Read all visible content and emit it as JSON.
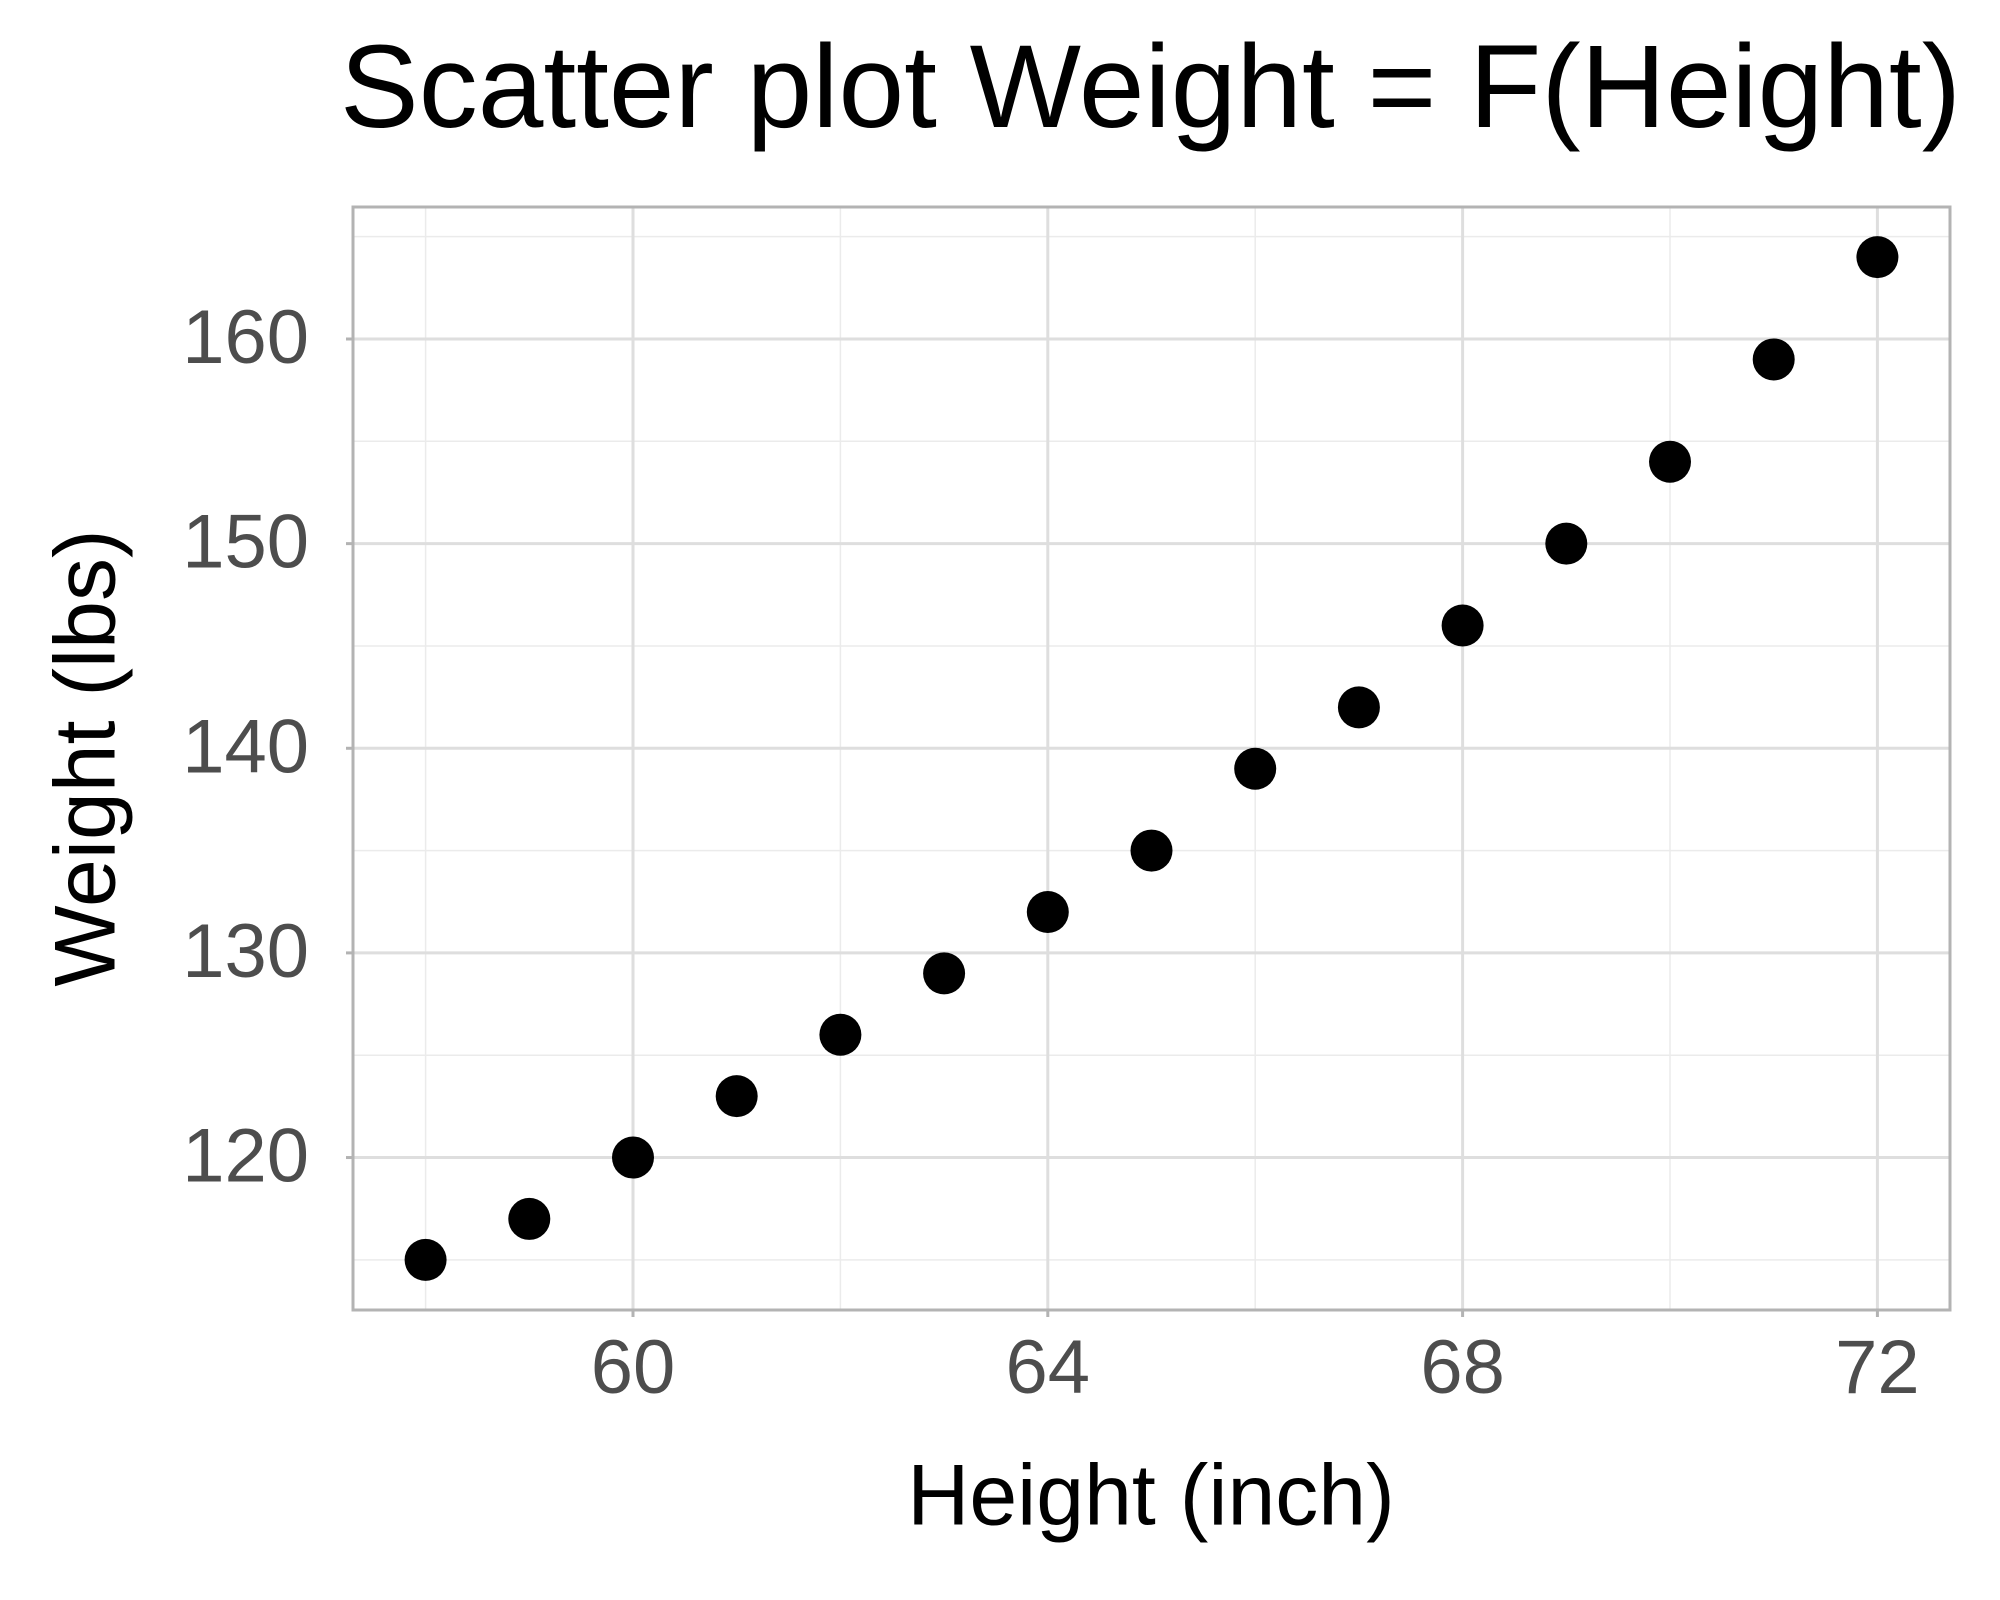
{
  "chart_data": {
    "type": "scatter",
    "title": "Scatter plot Weight = F(Height)",
    "x_label": "Height (inch)",
    "y_label": "Weight (lbs)",
    "x": [
      58,
      59,
      60,
      61,
      62,
      63,
      64,
      65,
      66,
      67,
      68,
      69,
      70,
      71,
      72
    ],
    "values": [
      115,
      117,
      120,
      123,
      126,
      129,
      132,
      135,
      139,
      142,
      146,
      150,
      154,
      159,
      164
    ],
    "color": "#000000",
    "xlim": [
      57.3,
      72.7
    ],
    "xticks": [
      60,
      64,
      68,
      72
    ],
    "xminor": [
      58,
      62,
      66,
      70
    ],
    "ylim": [
      112.55,
      166.45
    ],
    "yticks": [
      120,
      130,
      140,
      150,
      160
    ],
    "yminor": [
      115,
      125,
      135,
      145,
      155,
      165
    ],
    "grid": true
  }
}
